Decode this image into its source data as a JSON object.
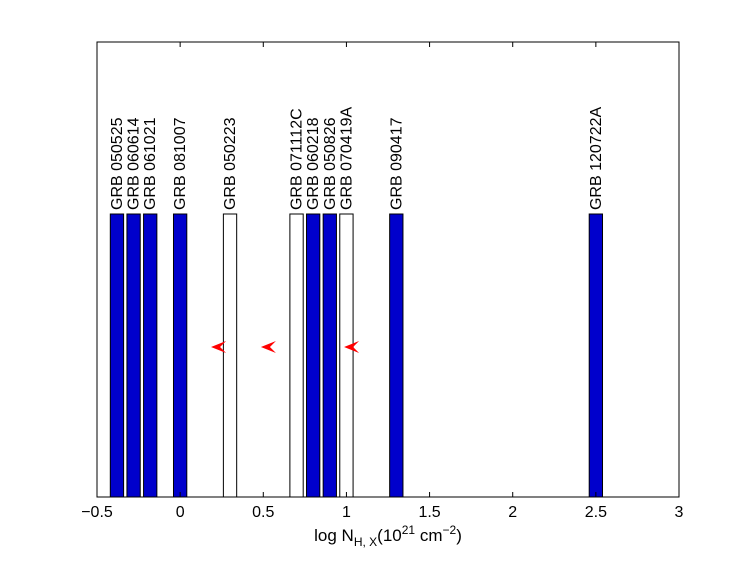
{
  "chart_data": {
    "type": "bar",
    "title": "",
    "xlabel": {
      "main": "log N",
      "sub": "H, X",
      "paren_open": "(10",
      "exp": "21",
      "unit": " cm",
      "unit_exp": "−2",
      "paren_close": ")"
    },
    "ylabel": "",
    "xlim": [
      -0.5,
      3.0
    ],
    "grid": false,
    "x_ticks": [
      {
        "value": -0.5,
        "label": "−0.5"
      },
      {
        "value": 0,
        "label": "0"
      },
      {
        "value": 0.5,
        "label": "0.5"
      },
      {
        "value": 1,
        "label": "1"
      },
      {
        "value": 1.5,
        "label": "1.5"
      },
      {
        "value": 2,
        "label": "2"
      },
      {
        "value": 2.5,
        "label": "2.5"
      },
      {
        "value": 3,
        "label": "3"
      }
    ],
    "bars": [
      {
        "label": "GRB 050525",
        "x_start": -0.42,
        "x_end": -0.34,
        "filled": true
      },
      {
        "label": "GRB 060614",
        "x_start": -0.32,
        "x_end": -0.24,
        "filled": true
      },
      {
        "label": "GRB 061021",
        "x_start": -0.22,
        "x_end": -0.14,
        "filled": true
      },
      {
        "label": "GRB 081007",
        "x_start": -0.04,
        "x_end": 0.04,
        "filled": true
      },
      {
        "label": "GRB 050223",
        "x_start": 0.26,
        "x_end": 0.34,
        "filled": false
      },
      {
        "label": "GRB 071112C",
        "x_start": 0.66,
        "x_end": 0.74,
        "filled": false
      },
      {
        "label": "GRB 060218",
        "x_start": 0.76,
        "x_end": 0.84,
        "filled": true
      },
      {
        "label": "GRB 050826",
        "x_start": 0.86,
        "x_end": 0.94,
        "filled": true
      },
      {
        "label": "GRB 070419A",
        "x_start": 0.96,
        "x_end": 1.04,
        "filled": false
      },
      {
        "label": "GRB 090417",
        "x_start": 1.26,
        "x_end": 1.34,
        "filled": true
      },
      {
        "label": "GRB 120722A",
        "x_start": 2.46,
        "x_end": 2.54,
        "filled": true
      }
    ],
    "upper_limit_arrows": [
      {
        "x": 0.27
      },
      {
        "x": 0.57
      },
      {
        "x": 1.07
      }
    ],
    "colors": {
      "filled_bar": "#0000cc",
      "bar_edge": "#000000",
      "open_bar": "#ffffff",
      "arrow": "#ff0000",
      "axes": "#000000"
    }
  }
}
